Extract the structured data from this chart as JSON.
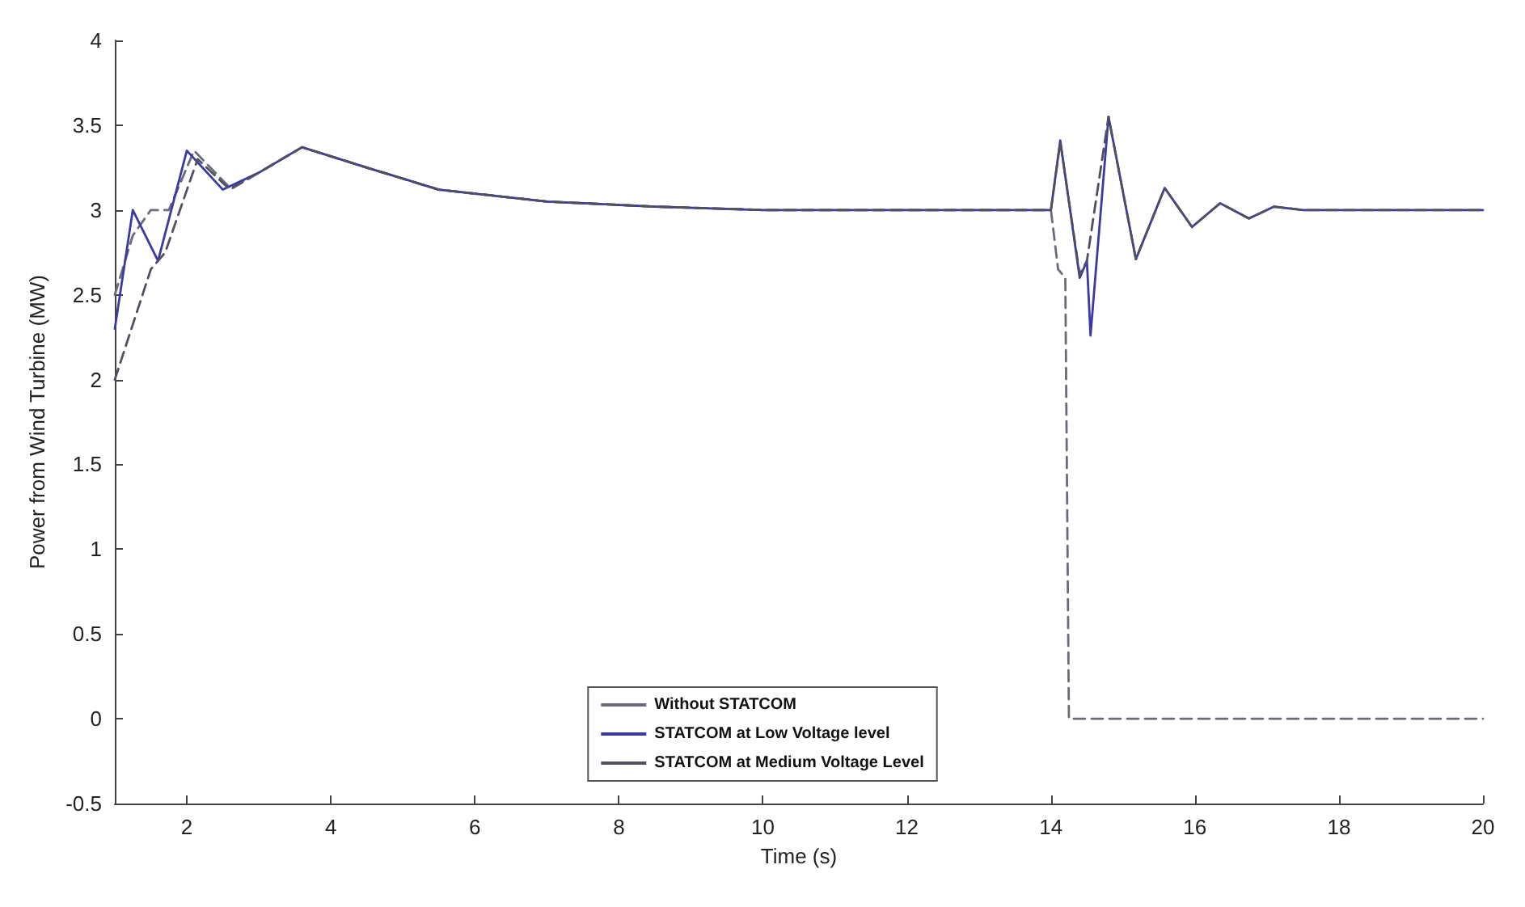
{
  "chart_data": {
    "type": "line",
    "xlabel": "Time (s)",
    "ylabel": "Power from Wind Turbine (MW)",
    "xlim": [
      1,
      20
    ],
    "xticks": [
      2,
      4,
      6,
      8,
      10,
      12,
      14,
      16,
      18,
      20
    ],
    "ylim": [
      -0.5,
      4
    ],
    "yticks": [
      -0.5,
      0,
      0.5,
      1,
      1.5,
      2,
      2.5,
      3,
      3.5,
      4
    ],
    "grid": false,
    "legend": "bottom",
    "marker": "none",
    "series": [
      {
        "name": "Without STATCOM",
        "color": "#6a6a7a",
        "line_style": "dashed",
        "x": [
          1,
          1.25,
          1.5,
          1.75,
          2.1,
          2.6,
          3,
          3.6,
          4.5,
          5.5,
          7,
          8.5,
          10,
          14,
          14.1,
          14.2,
          14.25,
          20
        ],
        "values": [
          2.5,
          2.85,
          3.0,
          3.0,
          3.35,
          3.13,
          3.22,
          3.37,
          3.25,
          3.12,
          3.05,
          3.02,
          3.0,
          3.0,
          2.65,
          2.6,
          0,
          0
        ]
      },
      {
        "name": "STATCOM at Low Voltage level",
        "color": "#3a3aa0",
        "line_style": "solid",
        "x": [
          1,
          1.25,
          1.6,
          2.0,
          2.5,
          3,
          3.6,
          4.5,
          5.5,
          7,
          8.5,
          10,
          14,
          14.13,
          14.4,
          14.5,
          14.55,
          14.8,
          15.18,
          15.58,
          15.96,
          16.35,
          16.75,
          17.1,
          17.5,
          20
        ],
        "values": [
          2.3,
          3.0,
          2.7,
          3.35,
          3.12,
          3.22,
          3.37,
          3.25,
          3.12,
          3.05,
          3.02,
          3.0,
          3.0,
          3.41,
          2.6,
          2.7,
          2.26,
          3.55,
          2.71,
          3.13,
          2.9,
          3.04,
          2.95,
          3.02,
          3.0,
          3.0
        ]
      },
      {
        "name": "STATCOM at Medium Voltage Level",
        "color": "#505060",
        "line_style": "dashed",
        "x": [
          1,
          1.5,
          1.7,
          2.15,
          2.6,
          3,
          3.6,
          4.5,
          5.5,
          7,
          8.5,
          10,
          14,
          14.13,
          14.4,
          14.5,
          14.8,
          15.18,
          15.58,
          15.96,
          16.35,
          16.75,
          17.1,
          17.5,
          20
        ],
        "values": [
          2.0,
          2.65,
          2.75,
          3.3,
          3.12,
          3.22,
          3.37,
          3.25,
          3.12,
          3.05,
          3.02,
          3.0,
          3.0,
          3.4,
          2.62,
          2.7,
          3.55,
          2.71,
          3.13,
          2.9,
          3.04,
          2.95,
          3.02,
          3.0,
          3.0
        ]
      }
    ]
  }
}
